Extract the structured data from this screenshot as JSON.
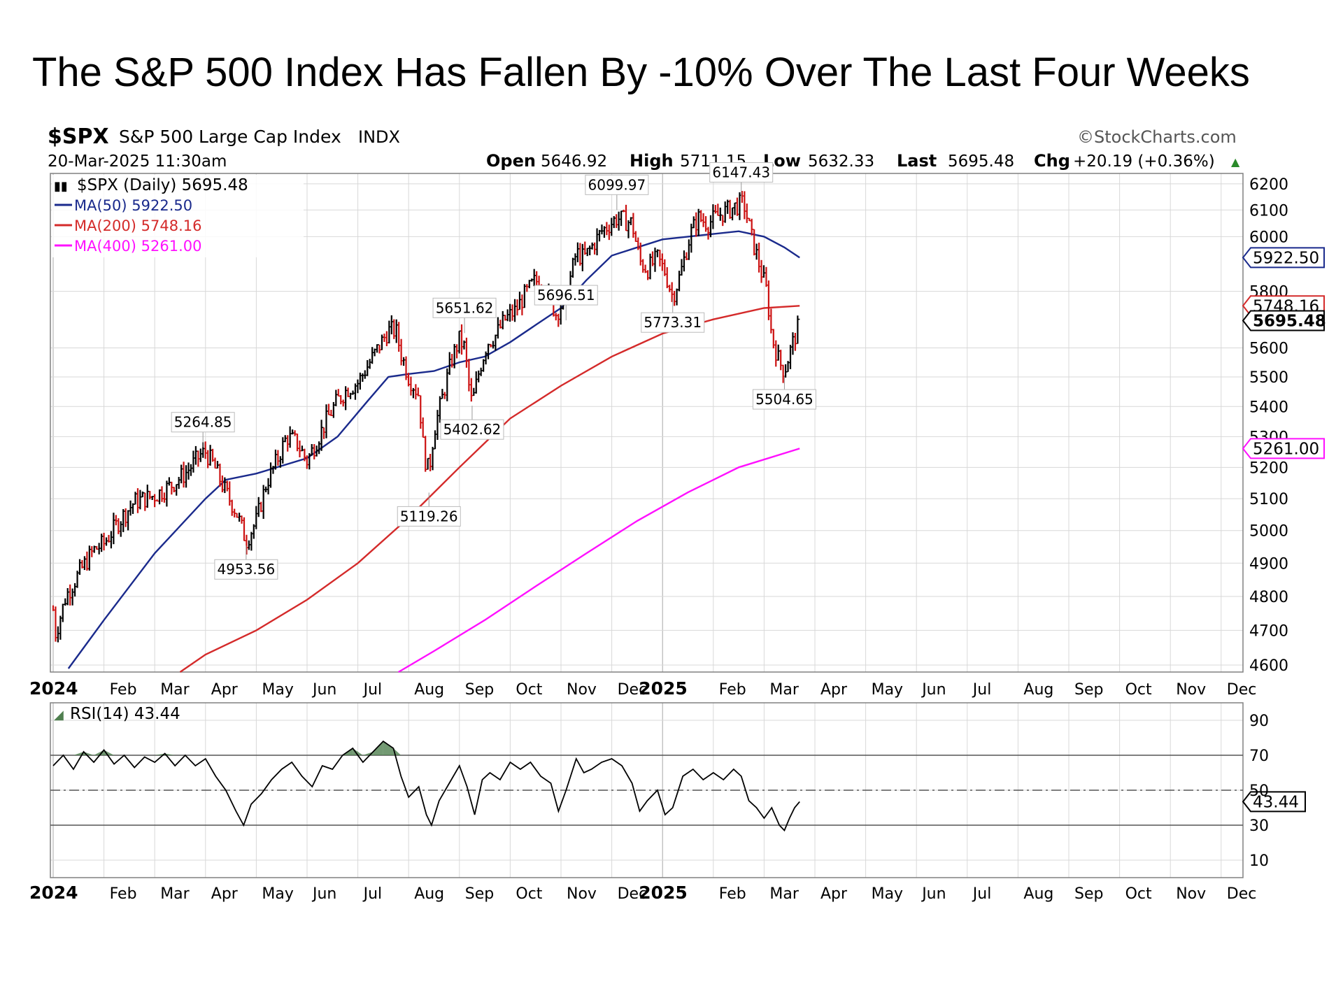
{
  "slide_title": "The S&P 500 Index Has Fallen By -10% Over The Last Four Weeks",
  "header": {
    "symbol": "$SPX",
    "name": "S&P 500 Large Cap Index",
    "exchange": "INDX",
    "date": "20-Mar-2025 11:30am",
    "brand": "©StockCharts.com",
    "open_label": "Open",
    "open": "5646.92",
    "high_label": "High",
    "high": "5711.15",
    "low_label": "Low",
    "low": "5632.33",
    "last_label": "Last",
    "last": "5695.48",
    "chg_label": "Chg",
    "chg": "+20.19 (+0.36%)",
    "up_arrow": "▲"
  },
  "legend": {
    "price": "$SPX (Daily) 5695.48",
    "ma50": "MA(50) 5922.50",
    "ma200": "MA(200) 5748.16",
    "ma400": "MA(400) 5261.00",
    "rsi": "RSI(14) 43.44"
  },
  "colors": {
    "price_up": "#000000",
    "price_down": "#cc1111",
    "ma50": "#1a2a8c",
    "ma200": "#d42a2a",
    "ma400": "#ff10ff",
    "grid": "#d8d8d8",
    "frame": "#808080",
    "rsi_fill": "#4f7f4f"
  },
  "chart_data": [
    {
      "type": "line",
      "title": "$SPX S&P 500 Large Cap Index INDX",
      "x_axis_labels": [
        "2024",
        "Feb",
        "Mar",
        "Apr",
        "May",
        "Jun",
        "Jul",
        "Aug",
        "Sep",
        "Oct",
        "Nov",
        "Dec",
        "2025",
        "Feb",
        "Mar",
        "Apr",
        "May",
        "Jun",
        "Jul",
        "Aug",
        "Sep",
        "Oct",
        "Nov",
        "Dec"
      ],
      "x_month_index": [
        0,
        1,
        2,
        3,
        4,
        5,
        6,
        7,
        8,
        9,
        10,
        11,
        12,
        13,
        14,
        15,
        16,
        17,
        18,
        19,
        20,
        21,
        22,
        23
      ],
      "y_ticks": [
        6200,
        6100,
        6000,
        5800,
        5600,
        5500,
        5400,
        5300,
        5200,
        5100,
        5000,
        4900,
        4800,
        4700,
        4600
      ],
      "y_tick_labels": [
        "6200",
        "6100",
        "6000",
        "5800",
        "5600",
        "5500",
        "5400",
        "5300",
        "5200",
        "5100",
        "5000",
        "4900",
        "4800",
        "4700",
        "4600"
      ],
      "ylim": [
        4580,
        6240
      ],
      "scale": "log",
      "series": [
        {
          "name": "$SPX (Daily)",
          "points_month_value": [
            [
              0.0,
              4760
            ],
            [
              0.05,
              4690
            ],
            [
              0.25,
              4800
            ],
            [
              0.55,
              4880
            ],
            [
              0.8,
              4940
            ],
            [
              1.0,
              4960
            ],
            [
              1.3,
              5030
            ],
            [
              1.6,
              5090
            ],
            [
              2.0,
              5110
            ],
            [
              2.3,
              5140
            ],
            [
              2.6,
              5180
            ],
            [
              2.9,
              5240
            ],
            [
              3.0,
              5250
            ],
            [
              3.15,
              5210
            ],
            [
              3.4,
              5120
            ],
            [
              3.6,
              5060
            ],
            [
              3.8,
              4967
            ],
            [
              4.0,
              5030
            ],
            [
              4.2,
              5150
            ],
            [
              4.4,
              5220
            ],
            [
              4.6,
              5300
            ],
            [
              4.8,
              5280
            ],
            [
              5.0,
              5220
            ],
            [
              5.2,
              5290
            ],
            [
              5.4,
              5360
            ],
            [
              5.6,
              5420
            ],
            [
              5.8,
              5460
            ],
            [
              6.0,
              5480
            ],
            [
              6.2,
              5540
            ],
            [
              6.4,
              5600
            ],
            [
              6.6,
              5660
            ],
            [
              6.75,
              5660
            ],
            [
              6.85,
              5580
            ],
            [
              7.0,
              5500
            ],
            [
              7.2,
              5440
            ],
            [
              7.3,
              5240
            ],
            [
              7.4,
              5186
            ],
            [
              7.5,
              5320
            ],
            [
              7.65,
              5420
            ],
            [
              7.85,
              5560
            ],
            [
              8.0,
              5630
            ],
            [
              8.1,
              5600
            ],
            [
              8.2,
              5450
            ],
            [
              8.25,
              5408
            ],
            [
              8.4,
              5530
            ],
            [
              8.55,
              5620
            ],
            [
              8.7,
              5640
            ],
            [
              8.9,
              5700
            ],
            [
              9.1,
              5730
            ],
            [
              9.3,
              5790
            ],
            [
              9.5,
              5840
            ],
            [
              9.7,
              5810
            ],
            [
              9.9,
              5720
            ],
            [
              10.1,
              5780
            ],
            [
              10.3,
              5940
            ],
            [
              10.45,
              5920
            ],
            [
              10.6,
              5960
            ],
            [
              10.8,
              6020
            ],
            [
              11.1,
              6070
            ],
            [
              11.4,
              6050
            ],
            [
              11.55,
              5910
            ],
            [
              11.7,
              5880
            ],
            [
              11.9,
              5920
            ],
            [
              12.05,
              5870
            ],
            [
              12.2,
              5780
            ],
            [
              12.35,
              5860
            ],
            [
              12.55,
              6010
            ],
            [
              12.7,
              6070
            ],
            [
              12.9,
              6050
            ],
            [
              13.1,
              6080
            ],
            [
              13.3,
              6100
            ],
            [
              13.5,
              6120
            ],
            [
              13.6,
              6125
            ],
            [
              13.75,
              6000
            ],
            [
              13.9,
              5900
            ],
            [
              14.05,
              5800
            ],
            [
              14.15,
              5640
            ],
            [
              14.3,
              5550
            ],
            [
              14.4,
              5521
            ],
            [
              14.55,
              5610
            ],
            [
              14.65,
              5660
            ],
            [
              14.7,
              5695
            ]
          ]
        },
        {
          "name": "MA(50)",
          "last": 5922.5,
          "points_month_value": [
            [
              0.3,
              4590
            ],
            [
              1.0,
              4730
            ],
            [
              2.0,
              4930
            ],
            [
              3.0,
              5100
            ],
            [
              3.4,
              5160
            ],
            [
              4.0,
              5180
            ],
            [
              5.0,
              5230
            ],
            [
              5.6,
              5300
            ],
            [
              6.2,
              5420
            ],
            [
              6.6,
              5500
            ],
            [
              7.0,
              5510
            ],
            [
              7.5,
              5520
            ],
            [
              8.0,
              5550
            ],
            [
              8.5,
              5570
            ],
            [
              9.0,
              5620
            ],
            [
              9.5,
              5680
            ],
            [
              10.0,
              5740
            ],
            [
              10.5,
              5840
            ],
            [
              11.0,
              5930
            ],
            [
              11.5,
              5960
            ],
            [
              12.0,
              5990
            ],
            [
              12.5,
              6000
            ],
            [
              13.0,
              6010
            ],
            [
              13.5,
              6020
            ],
            [
              14.0,
              6000
            ],
            [
              14.4,
              5960
            ],
            [
              14.7,
              5922.5
            ]
          ]
        },
        {
          "name": "MA(200)",
          "last": 5748.16,
          "points_month_value": [
            [
              2.5,
              4580
            ],
            [
              3.0,
              4630
            ],
            [
              4.0,
              4700
            ],
            [
              5.0,
              4790
            ],
            [
              6.0,
              4900
            ],
            [
              7.0,
              5040
            ],
            [
              8.0,
              5200
            ],
            [
              9.0,
              5360
            ],
            [
              10.0,
              5470
            ],
            [
              11.0,
              5570
            ],
            [
              12.0,
              5650
            ],
            [
              13.0,
              5700
            ],
            [
              14.0,
              5740
            ],
            [
              14.7,
              5748.16
            ]
          ]
        },
        {
          "name": "MA(400)",
          "last": 5261.0,
          "points_month_value": [
            [
              6.8,
              4580
            ],
            [
              7.5,
              4640
            ],
            [
              8.5,
              4730
            ],
            [
              9.5,
              4830
            ],
            [
              10.5,
              4930
            ],
            [
              11.5,
              5030
            ],
            [
              12.5,
              5120
            ],
            [
              13.5,
              5200
            ],
            [
              14.7,
              5261
            ]
          ]
        }
      ],
      "annotations": [
        {
          "label": "5264.85",
          "month": 2.95,
          "value": 5264.85
        },
        {
          "label": "4953.56",
          "month": 3.8,
          "value": 4953.56
        },
        {
          "label": "5119.26",
          "month": 7.4,
          "value": 5119.26
        },
        {
          "label": "5651.62",
          "month": 8.1,
          "value": 5651.62
        },
        {
          "label": "5402.62",
          "month": 8.25,
          "value": 5402.62
        },
        {
          "label": "5696.51",
          "month": 10.1,
          "value": 5696.51
        },
        {
          "label": "6099.97",
          "month": 11.1,
          "value": 6099.97
        },
        {
          "label": "6147.43",
          "month": 13.55,
          "value": 6147.43
        },
        {
          "label": "5773.31",
          "month": 12.2,
          "value": 5773.31
        },
        {
          "label": "5504.65",
          "month": 14.4,
          "value": 5504.65
        }
      ],
      "right_tags": [
        {
          "label": "5922.50",
          "value": 5922.5,
          "color_key": "ma50"
        },
        {
          "label": "5748.16",
          "value": 5748.16,
          "color_key": "ma200"
        },
        {
          "label": "5695.48",
          "value": 5695.48,
          "color_key": "price_up"
        },
        {
          "label": "5261.00",
          "value": 5261.0,
          "color_key": "ma400"
        }
      ]
    },
    {
      "type": "line",
      "title": "RSI(14) 43.44",
      "x_axis_labels": [
        "2024",
        "Feb",
        "Mar",
        "Apr",
        "May",
        "Jun",
        "Jul",
        "Aug",
        "Sep",
        "Oct",
        "Nov",
        "Dec",
        "2025",
        "Feb",
        "Mar",
        "Apr",
        "May",
        "Jun",
        "Jul",
        "Aug",
        "Sep",
        "Oct",
        "Nov",
        "Dec"
      ],
      "y_ticks": [
        90,
        70,
        50,
        30,
        10
      ],
      "y_tick_labels": [
        "90",
        "70",
        "50",
        "30",
        "10"
      ],
      "ylim": [
        0,
        100
      ],
      "reference_lines": [
        70,
        50,
        30
      ],
      "last_tag": "43.44",
      "series": [
        {
          "name": "RSI(14)",
          "points_month_value": [
            [
              0.0,
              64
            ],
            [
              0.2,
              70
            ],
            [
              0.4,
              62
            ],
            [
              0.6,
              72
            ],
            [
              0.8,
              66
            ],
            [
              1.0,
              73
            ],
            [
              1.2,
              65
            ],
            [
              1.4,
              70
            ],
            [
              1.6,
              63
            ],
            [
              1.8,
              69
            ],
            [
              2.0,
              66
            ],
            [
              2.2,
              71
            ],
            [
              2.4,
              64
            ],
            [
              2.6,
              70
            ],
            [
              2.8,
              64
            ],
            [
              3.0,
              68
            ],
            [
              3.2,
              58
            ],
            [
              3.4,
              50
            ],
            [
              3.6,
              38
            ],
            [
              3.75,
              30
            ],
            [
              3.9,
              42
            ],
            [
              4.1,
              48
            ],
            [
              4.3,
              56
            ],
            [
              4.5,
              62
            ],
            [
              4.7,
              66
            ],
            [
              4.9,
              58
            ],
            [
              5.1,
              52
            ],
            [
              5.3,
              64
            ],
            [
              5.5,
              62
            ],
            [
              5.7,
              70
            ],
            [
              5.9,
              74
            ],
            [
              6.1,
              66
            ],
            [
              6.3,
              72
            ],
            [
              6.5,
              78
            ],
            [
              6.7,
              74
            ],
            [
              6.85,
              58
            ],
            [
              7.0,
              46
            ],
            [
              7.2,
              52
            ],
            [
              7.35,
              36
            ],
            [
              7.45,
              30
            ],
            [
              7.6,
              44
            ],
            [
              7.8,
              54
            ],
            [
              8.0,
              64
            ],
            [
              8.15,
              52
            ],
            [
              8.3,
              36
            ],
            [
              8.45,
              56
            ],
            [
              8.6,
              60
            ],
            [
              8.8,
              56
            ],
            [
              9.0,
              66
            ],
            [
              9.2,
              62
            ],
            [
              9.4,
              66
            ],
            [
              9.6,
              58
            ],
            [
              9.8,
              54
            ],
            [
              9.95,
              38
            ],
            [
              10.1,
              50
            ],
            [
              10.3,
              68
            ],
            [
              10.45,
              60
            ],
            [
              10.6,
              62
            ],
            [
              10.8,
              66
            ],
            [
              11.0,
              68
            ],
            [
              11.2,
              64
            ],
            [
              11.4,
              54
            ],
            [
              11.55,
              38
            ],
            [
              11.7,
              44
            ],
            [
              11.9,
              50
            ],
            [
              12.05,
              36
            ],
            [
              12.2,
              40
            ],
            [
              12.4,
              58
            ],
            [
              12.6,
              62
            ],
            [
              12.8,
              56
            ],
            [
              13.0,
              60
            ],
            [
              13.2,
              56
            ],
            [
              13.4,
              62
            ],
            [
              13.55,
              58
            ],
            [
              13.7,
              44
            ],
            [
              13.85,
              40
            ],
            [
              14.0,
              34
            ],
            [
              14.15,
              40
            ],
            [
              14.3,
              30
            ],
            [
              14.4,
              27
            ],
            [
              14.5,
              34
            ],
            [
              14.6,
              40
            ],
            [
              14.7,
              43.44
            ]
          ]
        }
      ]
    }
  ]
}
